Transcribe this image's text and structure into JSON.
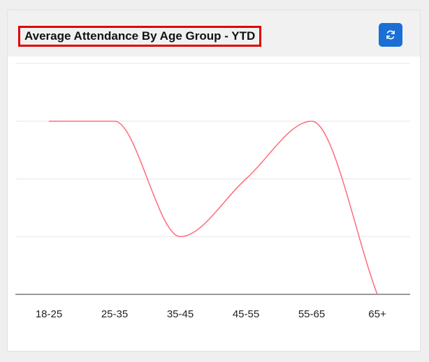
{
  "card": {
    "title": "Average Attendance By Age Group - YTD",
    "refresh_icon": "refresh-icon"
  },
  "colors": {
    "line": "#ff6b7d",
    "accent": "#1a6fd6",
    "title_highlight": "#e00000"
  },
  "chart_data": {
    "type": "line",
    "title": "Average Attendance By Age Group - YTD",
    "categories": [
      "18-25",
      "25-35",
      "35-45",
      "45-55",
      "55-65",
      "65+"
    ],
    "values": [
      3,
      3,
      1,
      2,
      3,
      0
    ],
    "ylim": [
      0,
      4
    ],
    "grid": true,
    "smooth": true,
    "legend": "none"
  }
}
